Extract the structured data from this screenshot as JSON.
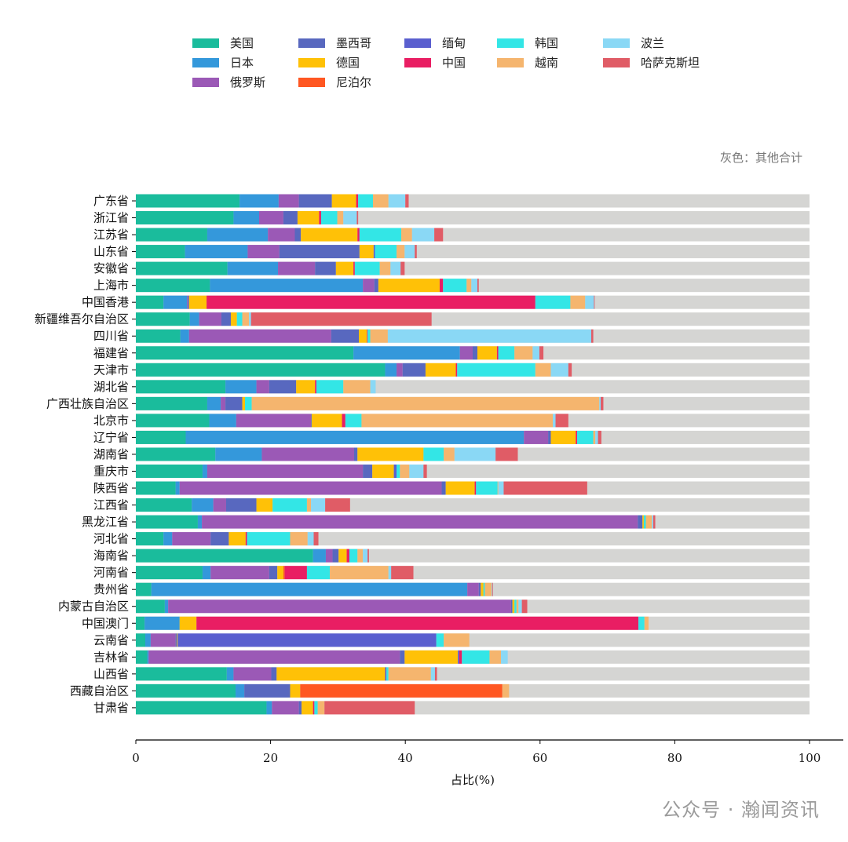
{
  "chart_data": {
    "type": "bar",
    "orientation": "horizontal",
    "stacked": true,
    "title": "",
    "xlabel": "占比(%)",
    "ylabel": "",
    "xlim": [
      0,
      100
    ],
    "xticks": [
      0,
      20,
      40,
      60,
      80,
      100
    ],
    "grid": false,
    "legend_placement": "top",
    "note": "灰色：其他合计",
    "other_color": "#d5d5d3",
    "categories": [
      "广东省",
      "浙江省",
      "江苏省",
      "山东省",
      "安徽省",
      "上海市",
      "中国香港",
      "新疆维吾尔自治区",
      "四川省",
      "福建省",
      "天津市",
      "湖北省",
      "广西壮族自治区",
      "北京市",
      "辽宁省",
      "湖南省",
      "重庆市",
      "陕西省",
      "江西省",
      "黑龙江省",
      "河北省",
      "海南省",
      "河南省",
      "贵州省",
      "内蒙古自治区",
      "中国澳门",
      "云南省",
      "吉林省",
      "山西省",
      "西藏自治区",
      "甘肃省"
    ],
    "series": [
      {
        "name": "美国",
        "color": "#1abc9c",
        "values": [
          15.4,
          14.5,
          10.6,
          7.3,
          13.6,
          11.0,
          4.1,
          8.0,
          6.6,
          32.3,
          37.0,
          13.3,
          10.6,
          10.9,
          7.4,
          11.8,
          9.9,
          5.9,
          8.3,
          9.2,
          4.1,
          26.3,
          9.9,
          2.3,
          4.3,
          1.3,
          1.4,
          1.7,
          13.5,
          14.8,
          19.4
        ]
      },
      {
        "name": "日本",
        "color": "#3498db",
        "values": [
          5.8,
          3.8,
          9.0,
          9.3,
          7.5,
          22.7,
          3.5,
          1.4,
          1.3,
          15.8,
          1.7,
          4.6,
          2.0,
          4.0,
          50.2,
          6.9,
          0.7,
          0.6,
          3.2,
          0.6,
          1.3,
          1.9,
          1.2,
          46.9,
          0.5,
          5.2,
          0.8,
          0.2,
          1.0,
          1.3,
          0.8
        ]
      },
      {
        "name": "俄罗斯",
        "color": "#9b59b6",
        "values": [
          3.0,
          3.6,
          4.0,
          4.7,
          5.5,
          1.7,
          0.1,
          3.3,
          21.1,
          1.9,
          0.9,
          1.9,
          0.7,
          11.1,
          3.6,
          13.7,
          23.1,
          38.9,
          1.9,
          64.7,
          5.7,
          1.0,
          8.7,
          1.7,
          50.9,
          0,
          3.7,
          37.3,
          5.6,
          0,
          4.0
        ]
      },
      {
        "name": "墨西哥",
        "color": "#5868bf",
        "values": [
          4.9,
          2.1,
          0.9,
          11.9,
          3.1,
          0.6,
          0.2,
          1.4,
          4.1,
          0.7,
          3.4,
          4.0,
          2.5,
          0.1,
          0.4,
          0.5,
          1.4,
          0.6,
          4.5,
          0.7,
          2.7,
          0.9,
          1.2,
          0.3,
          0.2,
          0,
          0.2,
          0.7,
          0.8,
          6.8,
          0.4
        ]
      },
      {
        "name": "德国",
        "color": "#ffc107",
        "values": [
          3.6,
          3.2,
          8.4,
          2.1,
          2.6,
          9.1,
          2.6,
          0.9,
          1.2,
          2.9,
          4.5,
          2.8,
          0.4,
          4.5,
          3.7,
          9.8,
          3.2,
          4.3,
          2.4,
          0.2,
          2.5,
          1.2,
          0.9,
          0.4,
          0.3,
          2.5,
          0.1,
          7.9,
          16.1,
          1.5,
          1.7
        ]
      },
      {
        "name": "尼泊尔",
        "color": "#ff5722",
        "values": [
          0,
          0,
          0,
          0,
          0,
          0,
          0,
          0,
          0,
          0,
          0,
          0,
          0,
          0,
          0,
          0,
          0,
          0,
          0,
          0,
          0,
          0,
          0.2,
          0,
          0,
          0,
          0,
          0,
          0,
          30.0,
          0
        ]
      },
      {
        "name": "缅甸",
        "color": "#5a5fcf",
        "values": [
          0,
          0,
          0,
          0.2,
          0,
          0,
          0,
          0,
          0,
          0,
          0,
          0,
          0,
          0,
          0,
          0,
          0.4,
          0,
          0,
          0,
          0,
          0,
          0,
          0,
          0,
          0,
          38.4,
          0.2,
          0.2,
          0,
          0
        ]
      },
      {
        "name": "中国",
        "color": "#e91e63",
        "values": [
          0.3,
          0.3,
          0.3,
          0,
          0.2,
          0.5,
          48.8,
          0,
          0.1,
          0.2,
          0.2,
          0.2,
          0,
          0.5,
          0.2,
          0,
          0,
          0.2,
          0,
          0,
          0.2,
          0.4,
          3.3,
          0,
          0,
          65.6,
          0,
          0.4,
          0,
          0,
          0.2
        ]
      },
      {
        "name": "韩国",
        "color": "#33e6e6",
        "values": [
          2.2,
          2.4,
          6.2,
          3.2,
          3.7,
          3.5,
          5.2,
          0.8,
          0.4,
          2.4,
          11.6,
          4.0,
          1.0,
          2.4,
          2.4,
          3.0,
          0.5,
          3.2,
          5.1,
          0.3,
          6.4,
          1.2,
          3.4,
          0.2,
          0.3,
          0.9,
          1.1,
          4.1,
          0.3,
          0,
          0.5
        ]
      },
      {
        "name": "越南",
        "color": "#f5b56e",
        "values": [
          2.3,
          0.9,
          1.6,
          1.2,
          1.6,
          0.7,
          2.2,
          1.0,
          2.6,
          2.7,
          2.3,
          4.0,
          51.6,
          28.4,
          0.3,
          1.6,
          1.4,
          0.1,
          0.6,
          0.9,
          2.6,
          0.8,
          8.7,
          1.0,
          0.3,
          0.6,
          3.8,
          1.7,
          6.3,
          1.0,
          1.0
        ]
      },
      {
        "name": "波兰",
        "color": "#8ad8f5",
        "values": [
          2.5,
          2.0,
          3.3,
          1.5,
          1.5,
          0.9,
          1.3,
          0.3,
          30.2,
          1.0,
          2.6,
          0.8,
          0.2,
          0.4,
          0.4,
          6.1,
          2.1,
          0.8,
          2.1,
          0.2,
          0.9,
          0.7,
          0.4,
          0.1,
          0.5,
          0,
          0,
          1.0,
          0.6,
          0,
          0
        ]
      },
      {
        "name": "哈萨克斯坦",
        "color": "#e05c66",
        "values": [
          0.5,
          0.2,
          1.3,
          0.3,
          0.6,
          0.2,
          0.1,
          26.8,
          0.3,
          0.6,
          0.5,
          0,
          0.4,
          1.9,
          0.5,
          3.3,
          0.5,
          12.4,
          3.7,
          0.3,
          0.7,
          0.2,
          3.3,
          0.1,
          0.8,
          0,
          0,
          0,
          0.3,
          0,
          13.4
        ]
      }
    ]
  },
  "watermark": "公众号 · 瀚闻资讯"
}
